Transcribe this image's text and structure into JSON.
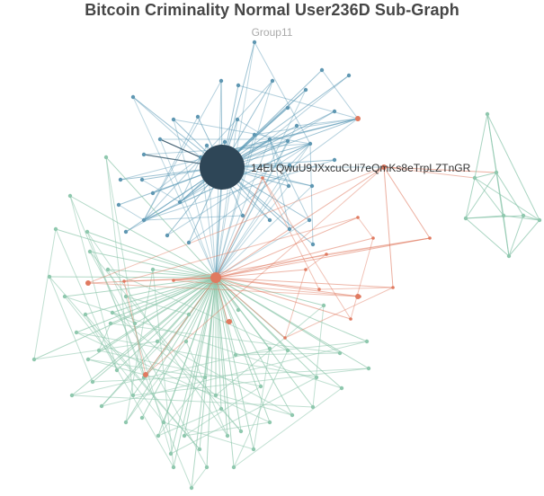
{
  "title": "Bitcoin Criminality Normal User236D Sub-Graph",
  "subtitle": "Group11",
  "hub_label": "14ELQwuU9JXxcuCUi7eQmKs8eTrpLZTnGR",
  "colors": {
    "hub": "#2e4657",
    "blue_edge": "#5b9ab5",
    "green_edge": "#8ec7ad",
    "red_edge": "#e07a60",
    "orange_node": "#e07a60",
    "green_node": "#8fc8ae",
    "blue_node": "#5f97b2"
  }
}
